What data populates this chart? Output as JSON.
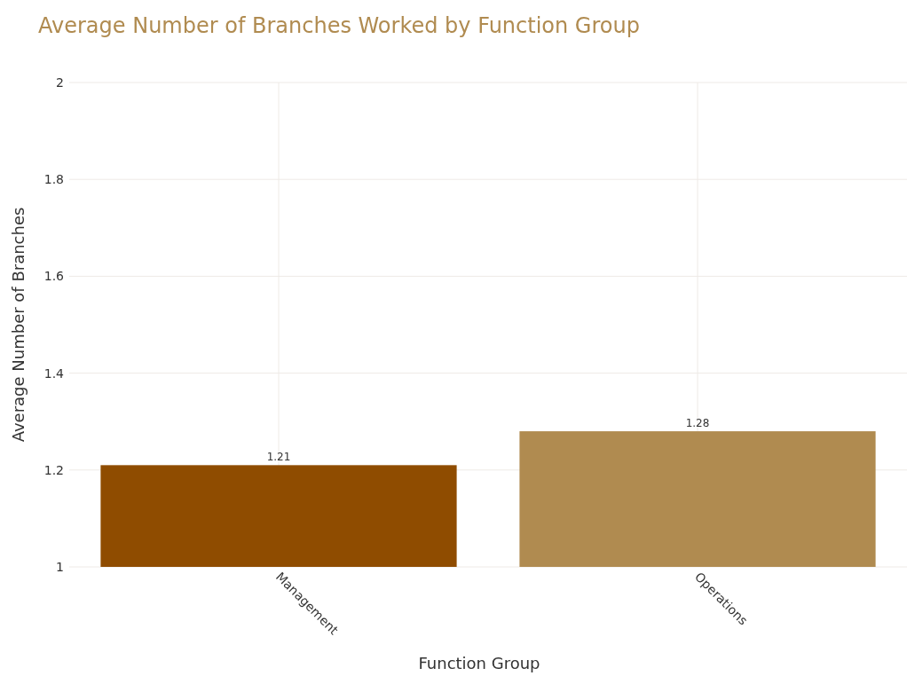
{
  "chart_data": {
    "type": "bar",
    "title": "Average Number of Branches Worked by Function Group",
    "xlabel": "Function Group",
    "ylabel": "Average Number of Branches",
    "categories": [
      "Management",
      "Operations"
    ],
    "values": [
      1.21,
      1.28
    ],
    "colors": [
      "#8f4c00",
      "#b08b50"
    ],
    "ylim": [
      1,
      2
    ],
    "yticks": [
      1,
      1.2,
      1.4,
      1.6,
      1.8,
      2
    ],
    "grid": true,
    "data_labels": true
  }
}
